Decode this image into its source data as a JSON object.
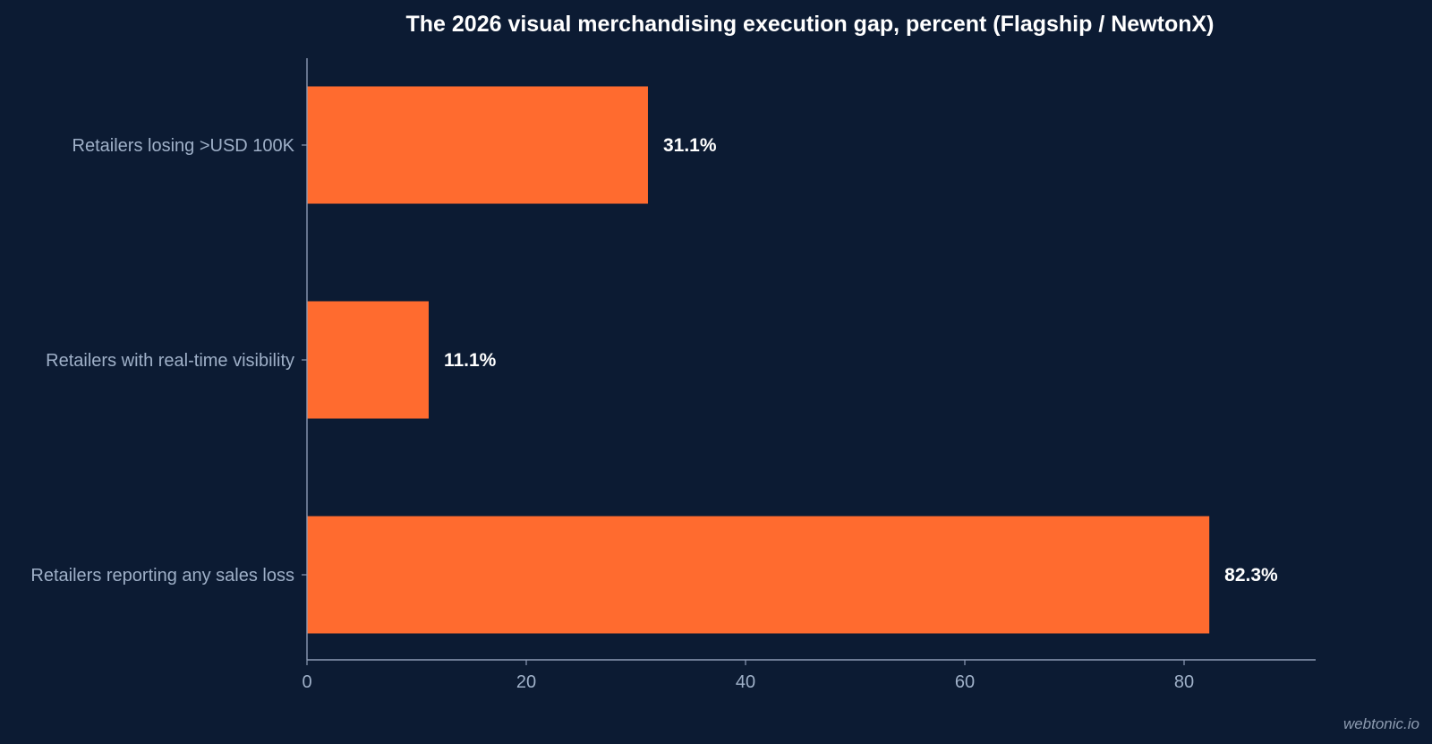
{
  "chart_data": {
    "type": "bar",
    "orientation": "horizontal",
    "title": "The 2026 visual merchandising execution gap, percent (Flagship / NewtonX)",
    "categories": [
      "Retailers losing >USD 100K",
      "Retailers with real-time visibility",
      "Retailers reporting any sales loss"
    ],
    "values": [
      31.1,
      11.1,
      82.3
    ],
    "data_labels": [
      "31.1%",
      "11.1%",
      "82.3%"
    ],
    "x_ticks": [
      "0",
      "20",
      "40",
      "60",
      "80"
    ],
    "xlim": [
      0,
      92
    ],
    "xlabel": "",
    "ylabel": "",
    "grid": false,
    "legend": "none",
    "colors": {
      "bar": "#ff6b2f",
      "background": "#0c1b33",
      "axis": "#8d9bb5",
      "label": "#9fb0c8",
      "value_label": "#ffffff"
    }
  },
  "watermark": "webtonic.io"
}
